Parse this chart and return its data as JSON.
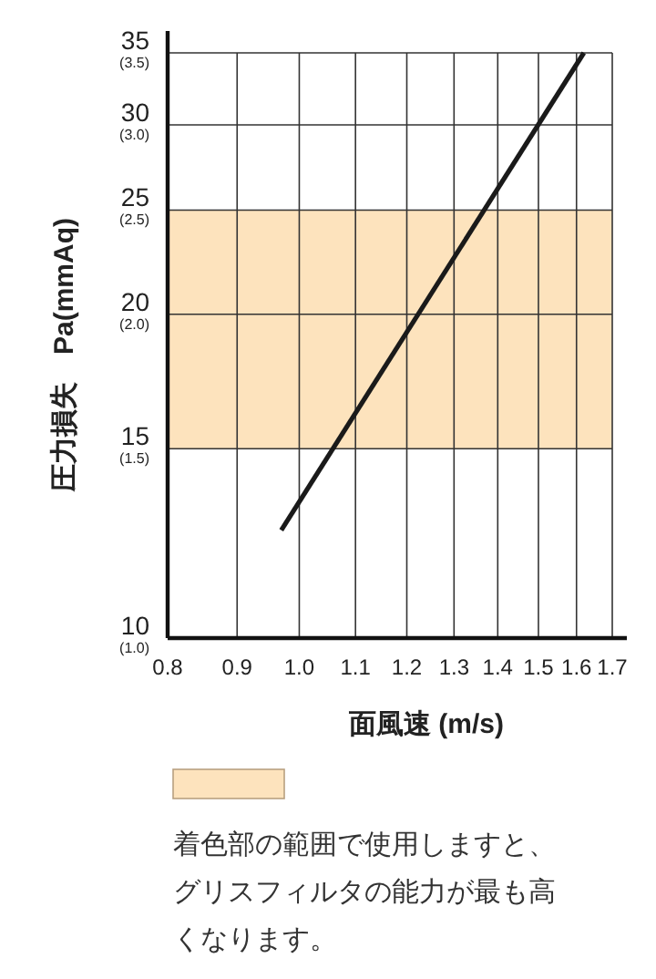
{
  "chart_data": {
    "type": "line",
    "xlabel": "面風速 (m/s)",
    "ylabel": "圧力損失　Pa(mmAq)",
    "log": "xy",
    "grid": true,
    "line_style": "solid",
    "series": [
      {
        "color": "#1a1a1a",
        "x": [
          0.97,
          1.62
        ],
        "values": [
          12.6,
          35
        ]
      }
    ],
    "xlim": [
      0.8,
      1.7
    ],
    "xticks": [
      0.8,
      0.9,
      {
        "value": 1,
        "label": "1.0"
      },
      1.1,
      1.2,
      1.3,
      1.4,
      1.5,
      1.6,
      1.7
    ],
    "ylim": [
      10,
      35
    ],
    "yticks": [
      10,
      15,
      20,
      25,
      30,
      35
    ],
    "annotations": [
      "(1.0)",
      "(1.5)",
      "(2.0)",
      "(2.5)",
      "(3.0)",
      "(3.5)"
    ],
    "bands": [
      {
        "axis": "y",
        "from": 15,
        "to": 25,
        "color": "#fde3bd",
        "label": "着色部の範囲で使用しますと、グリスフィルタの能力が最も高くなります。"
      }
    ]
  }
}
